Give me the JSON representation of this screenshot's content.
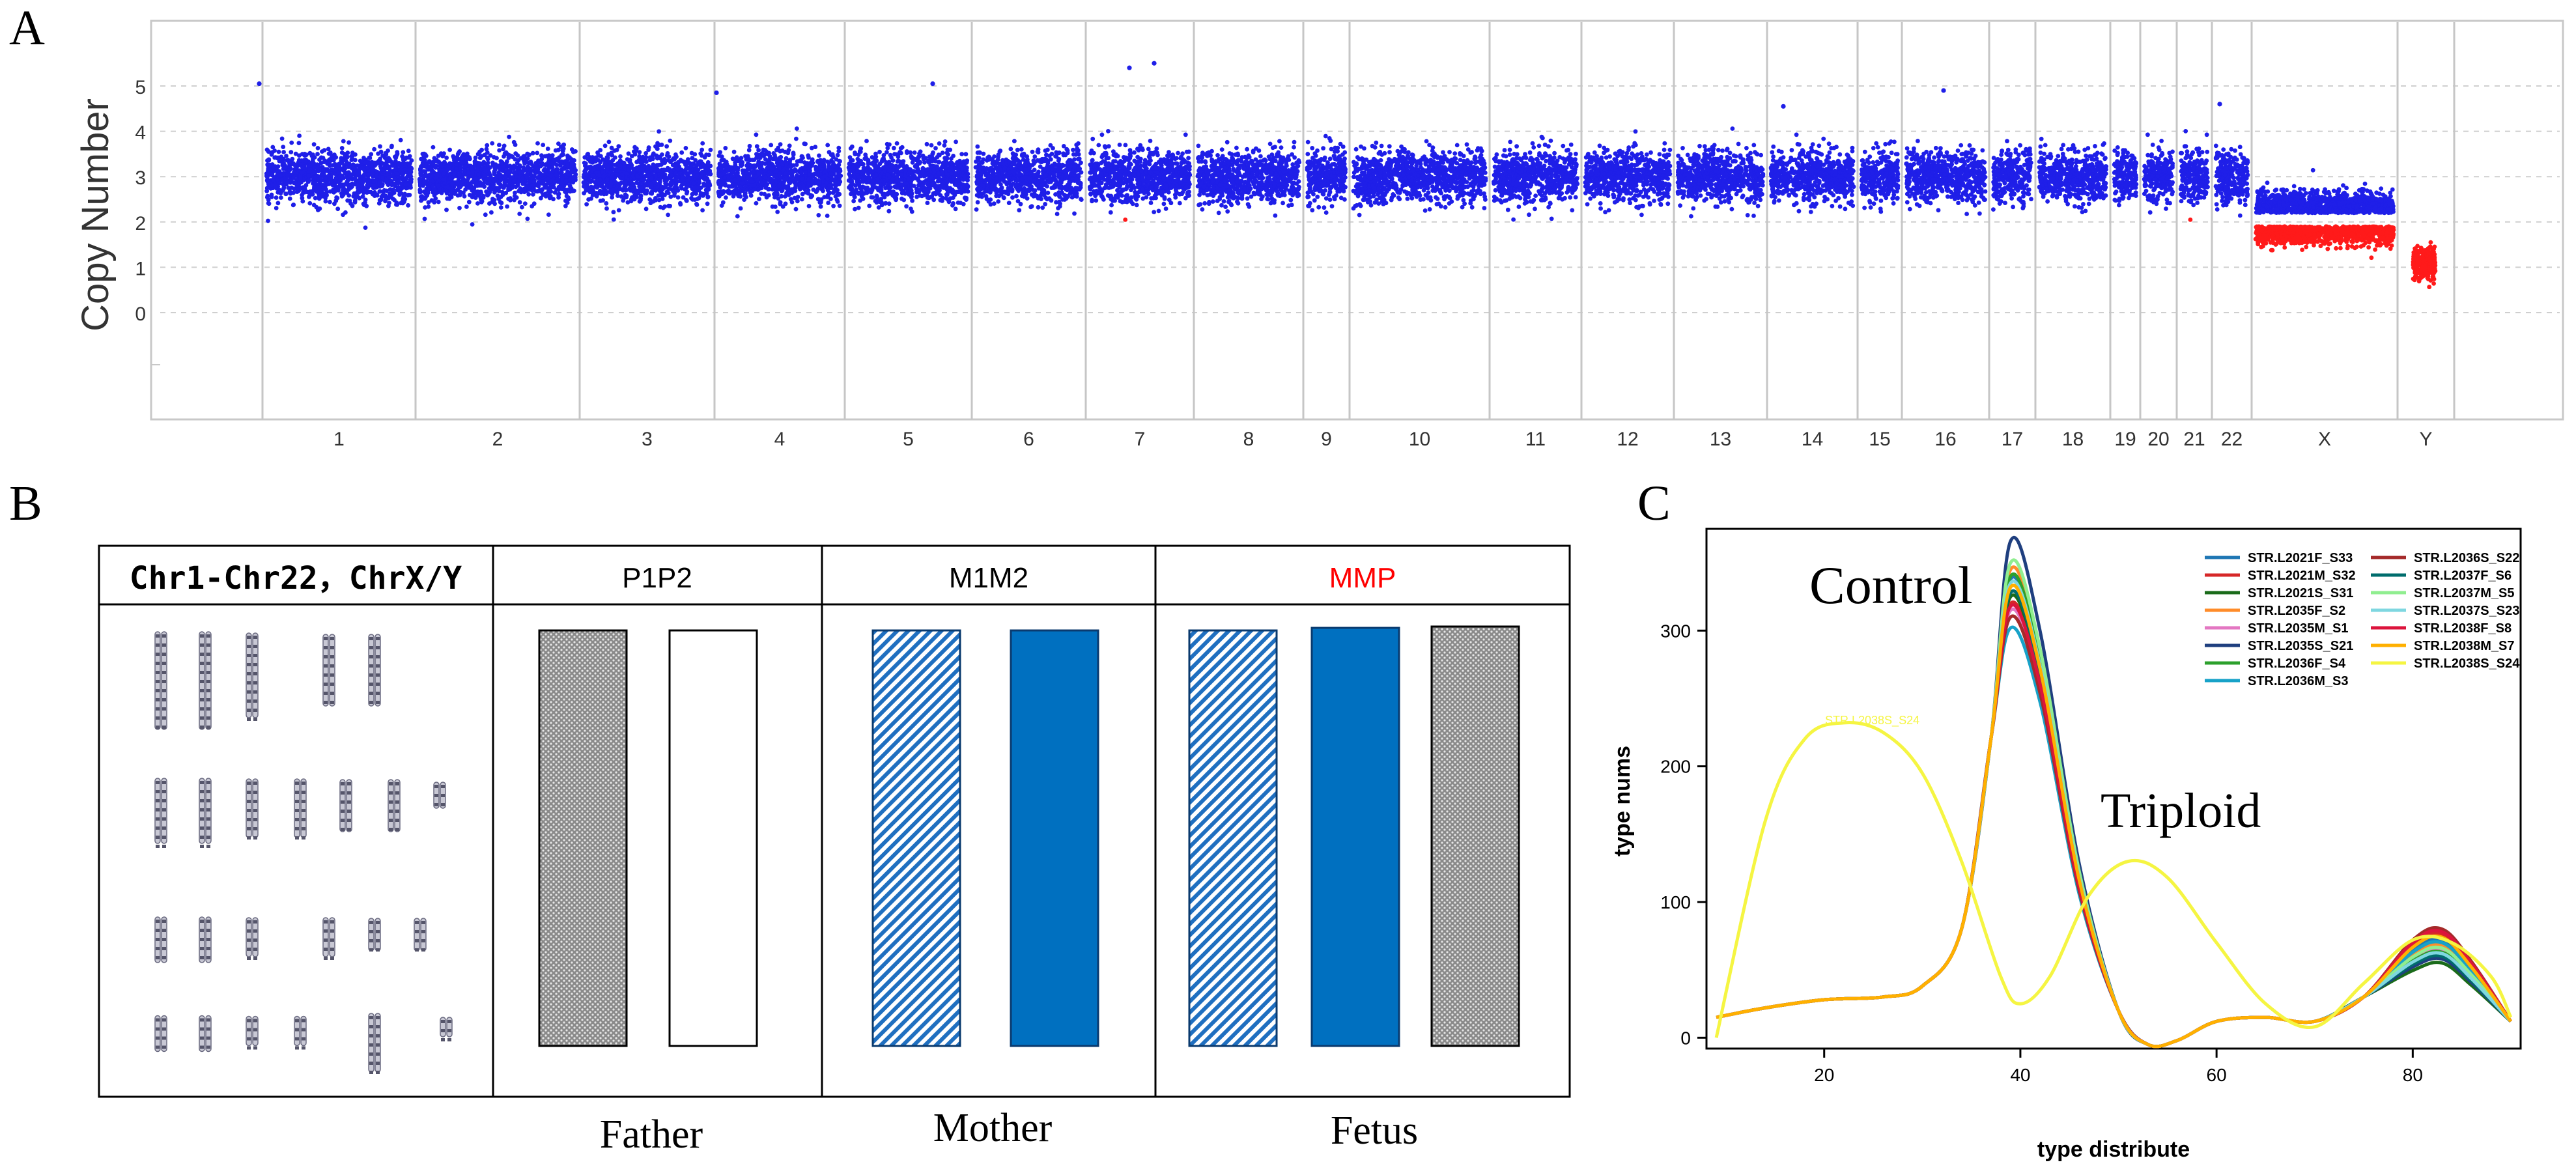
{
  "panel_letters": {
    "a": "A",
    "b": "B",
    "c": "C"
  },
  "colors": {
    "blue": "#1f1fe8",
    "red": "#ff1a1a",
    "mmp_red": "#ff0000",
    "bar_blue": "#0070c0"
  },
  "chart_data": [
    {
      "type": "scatter",
      "ylabel": "Copy Number",
      "yticks": [
        "0",
        "1",
        "2",
        "3",
        "4",
        "5"
      ],
      "ylim": [
        -1.5,
        6.0
      ],
      "grid": "dashed horizontal",
      "chromosomes": [
        {
          "label": "1",
          "median": 3.0,
          "low_mean": null
        },
        {
          "label": "2",
          "median": 3.0,
          "low_mean": null
        },
        {
          "label": "3",
          "median": 3.0,
          "low_mean": null
        },
        {
          "label": "4",
          "median": 3.0,
          "low_mean": null
        },
        {
          "label": "5",
          "median": 3.0,
          "low_mean": null
        },
        {
          "label": "6",
          "median": 3.0,
          "low_mean": null
        },
        {
          "label": "7",
          "median": 3.0,
          "low_mean": null
        },
        {
          "label": "8",
          "median": 3.0,
          "low_mean": null
        },
        {
          "label": "9",
          "median": 3.0,
          "low_mean": null
        },
        {
          "label": "10",
          "median": 3.0,
          "low_mean": null
        },
        {
          "label": "11",
          "median": 3.0,
          "low_mean": null
        },
        {
          "label": "12",
          "median": 3.0,
          "low_mean": null
        },
        {
          "label": "13",
          "median": 3.0,
          "low_mean": null
        },
        {
          "label": "14",
          "median": 3.0,
          "low_mean": null
        },
        {
          "label": "15",
          "median": 3.0,
          "low_mean": null
        },
        {
          "label": "16",
          "median": 3.0,
          "low_mean": null
        },
        {
          "label": "17",
          "median": 3.0,
          "low_mean": null
        },
        {
          "label": "18",
          "median": 3.0,
          "low_mean": null
        },
        {
          "label": "19",
          "median": 3.0,
          "low_mean": null
        },
        {
          "label": "20",
          "median": 3.0,
          "low_mean": null
        },
        {
          "label": "21",
          "median": 3.0,
          "low_mean": null
        },
        {
          "label": "22",
          "median": 3.0,
          "low_mean": null
        },
        {
          "label": "X",
          "median": 2.2,
          "low_mean": 1.9
        },
        {
          "label": "Y",
          "median": null,
          "low_mean": 1.1
        }
      ]
    },
    {
      "type": "table",
      "headers": [
        "Chr1-Chr22，ChrX/Y",
        "P1P2",
        "M1M2",
        "MMP"
      ],
      "header_colors": [
        "#000000",
        "#000000",
        "#000000",
        "#ff0000"
      ],
      "groups": [
        {
          "label": "Father",
          "bars": [
            "dotted-gray",
            "white"
          ]
        },
        {
          "label": "Mother",
          "bars": [
            "hatched-blue",
            "solid-blue"
          ]
        },
        {
          "label": "Fetus",
          "bars": [
            "hatched-blue",
            "solid-blue",
            "dotted-gray"
          ]
        }
      ]
    },
    {
      "type": "line",
      "xlabel": "type distribute",
      "ylabel": "type nums",
      "xlim": [
        8,
        91
      ],
      "ylim": [
        -8,
        375
      ],
      "xticks": [
        20,
        40,
        60,
        80
      ],
      "yticks": [
        0,
        100,
        200,
        300
      ],
      "annotations": [
        "Control",
        "Triploid",
        "STR.L2038S_S24"
      ],
      "legend_position": "top-right",
      "series": [
        {
          "name": "STR.L2021F_S33",
          "color": "#1f77b4",
          "peak": 338,
          "tail": 72
        },
        {
          "name": "STR.L2021M_S32",
          "color": "#d62728",
          "peak": 320,
          "tail": 76
        },
        {
          "name": "STR.L2021S_S31",
          "color": "#1a6b1a",
          "peak": 325,
          "tail": 55
        },
        {
          "name": "STR.L2035F_S2",
          "color": "#ff8c2a",
          "peak": 345,
          "tail": 68
        },
        {
          "name": "STR.L2035M_S1",
          "color": "#e377c2",
          "peak": 315,
          "tail": 65
        },
        {
          "name": "STR.L2035S_S21",
          "color": "#1f3f7f",
          "peak": 366,
          "tail": 58
        },
        {
          "name": "STR.L2036F_S4",
          "color": "#2ca02c",
          "peak": 340,
          "tail": 63
        },
        {
          "name": "STR.L2036M_S3",
          "color": "#17a2c8",
          "peak": 302,
          "tail": 70
        },
        {
          "name": "STR.L2036S_S22",
          "color": "#a52a2a",
          "peak": 310,
          "tail": 80
        },
        {
          "name": "STR.L2037F_S6",
          "color": "#006d6d",
          "peak": 328,
          "tail": 60
        },
        {
          "name": "STR.L2037M_S5",
          "color": "#90ee90",
          "peak": 350,
          "tail": 66
        },
        {
          "name": "STR.L2037S_S23",
          "color": "#7fd7e0",
          "peak": 335,
          "tail": 62
        },
        {
          "name": "STR.L2038F_S8",
          "color": "#dc143c",
          "peak": 318,
          "tail": 78
        },
        {
          "name": "STR.L2038M_S7",
          "color": "#ffb000",
          "peak": 332,
          "tail": 74
        },
        {
          "name": "STR.L2038S_S24",
          "color": "#f5f542",
          "peak": null,
          "tail": null,
          "x": [
            9,
            14,
            18,
            22,
            26,
            30,
            34,
            38,
            40,
            43,
            47,
            51,
            55,
            60,
            65,
            70,
            75,
            80,
            84,
            88,
            90
          ],
          "y": [
            0,
            160,
            220,
            232,
            225,
            195,
            130,
            45,
            25,
            45,
            105,
            130,
            118,
            70,
            25,
            8,
            40,
            72,
            70,
            45,
            15
          ]
        }
      ]
    }
  ]
}
